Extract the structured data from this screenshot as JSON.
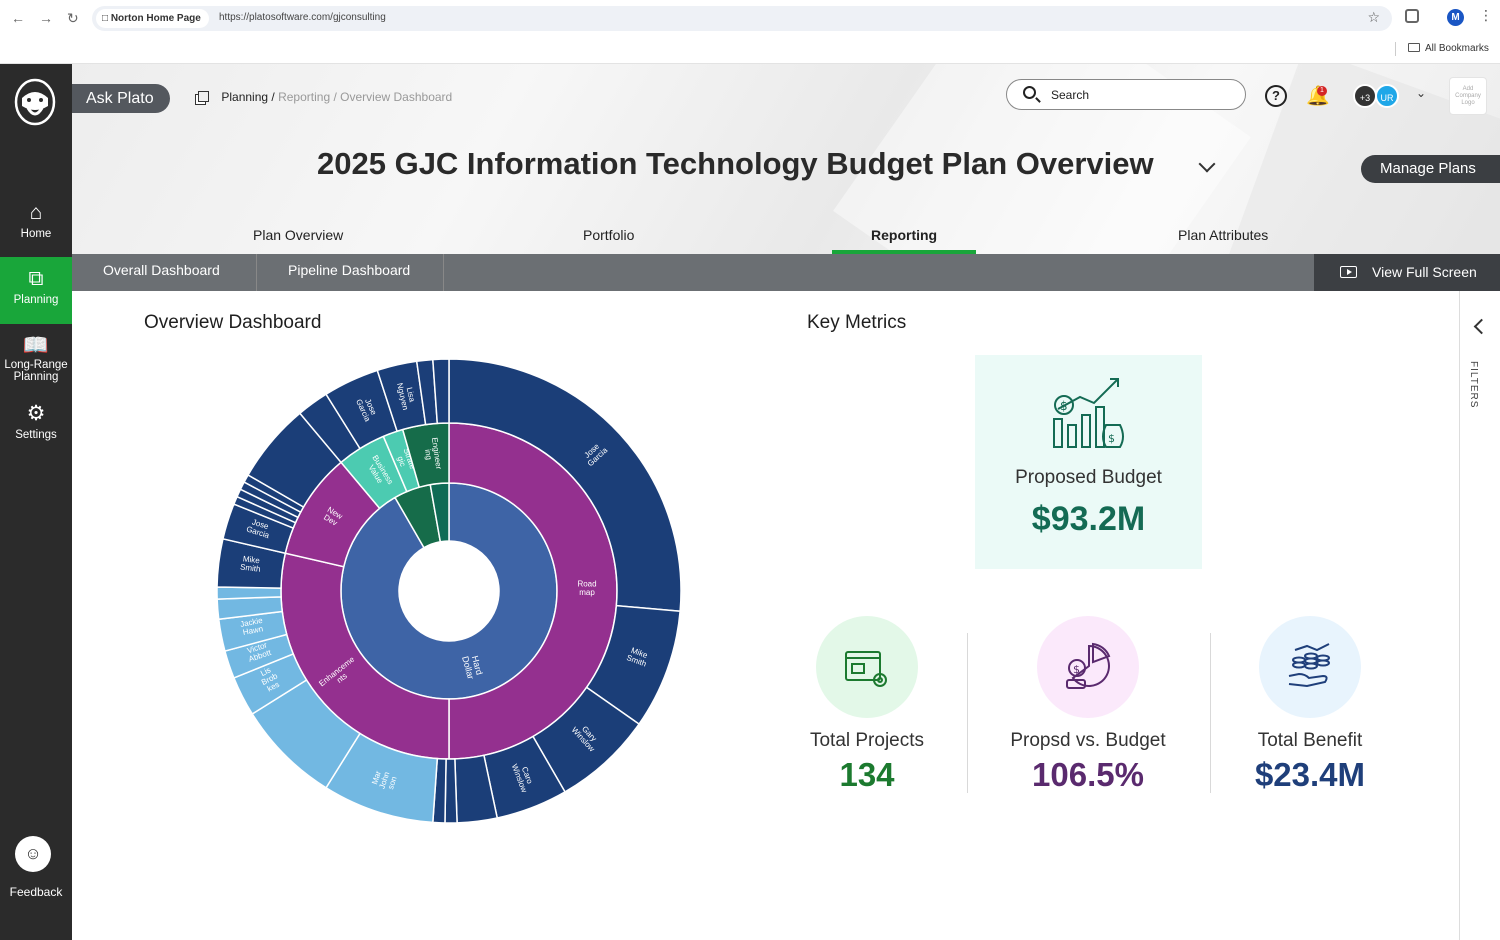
{
  "browser": {
    "tab_title": "Norton Home Page",
    "url": "https://platosoftware.com/gjconsulting",
    "bookmarks_label": "All Bookmarks",
    "profile_initial": "M"
  },
  "sidebar": {
    "items": [
      {
        "label": "Home",
        "icon": "home-icon"
      },
      {
        "label": "Planning",
        "icon": "planning-icon",
        "active": true
      },
      {
        "label": "Long-Range Planning",
        "icon": "map-icon"
      },
      {
        "label": "Settings",
        "icon": "gear-icon"
      }
    ],
    "feedback_label": "Feedback"
  },
  "header": {
    "ask_plato": "Ask Plato",
    "breadcrumb": {
      "root": "Planning",
      "sep1": "/",
      "mid": "Reporting",
      "sep2": "/",
      "leaf": "Overview Dashboard"
    },
    "search_placeholder": "Search",
    "notification_count": "1",
    "avatar_more": "+3",
    "avatar_user": "UR",
    "company_logo_text": "Add Company Logo",
    "plan_title": "2025 GJC Information Technology Budget Plan Overview",
    "manage_plans": "Manage Plans"
  },
  "tabs": [
    {
      "label": "Plan Overview"
    },
    {
      "label": "Portfolio"
    },
    {
      "label": "Reporting",
      "active": true
    },
    {
      "label": "Plan Attributes"
    }
  ],
  "subtabs": [
    {
      "label": "Overall Dashboard"
    },
    {
      "label": "Pipeline Dashboard"
    }
  ],
  "view_full_screen": "View Full Screen",
  "dashboard_title": "Overview Dashboard",
  "key_metrics_title": "Key Metrics",
  "proposed_budget": {
    "label": "Proposed Budget",
    "value": "$93.2M"
  },
  "metrics": [
    {
      "label": "Total Projects",
      "value": "134",
      "color": "#1c7a2f",
      "bg": "#e3f8e8",
      "icon": "project-folder-icon"
    },
    {
      "label": "Propsd vs. Budget",
      "value": "106.5%",
      "color": "#5a2a6e",
      "bg": "#fbe9fb",
      "icon": "budget-pie-icon"
    },
    {
      "label": "Total Benefit",
      "value": "$23.4M",
      "color": "#1f3f7a",
      "bg": "#e8f4fd",
      "icon": "benefit-hand-icon"
    }
  ],
  "filters_label": "FILTERS",
  "colors": {
    "sidebar_bg": "#2b2b2b",
    "active_green": "#19a63a",
    "navy": "#1b3e78",
    "inner_blue": "#3e64a6",
    "magenta": "#94308f",
    "teal_light": "#4ccbb1",
    "teal_dark": "#0f6b55",
    "light_blue": "#72b8e2"
  },
  "chart_data": {
    "type": "sunburst",
    "rings": [
      {
        "segments": [
          {
            "label": "Hard Dollar",
            "start": 0,
            "end": 330,
            "color": "#3e64a6"
          },
          {
            "label": "",
            "start": 330,
            "end": 350,
            "color": "#166c4a"
          },
          {
            "label": "",
            "start": 350,
            "end": 360,
            "color": "#0f6b55"
          }
        ]
      },
      {
        "segments": [
          {
            "label": "Road map",
            "start": 0,
            "end": 180,
            "color": "#94308f"
          },
          {
            "label": "Enhanceme nts",
            "start": 180,
            "end": 283,
            "color": "#94308f"
          },
          {
            "label": "New Dev",
            "start": 283,
            "end": 320,
            "color": "#94308f"
          },
          {
            "label": "Business Value",
            "start": 320,
            "end": 337,
            "color": "#4ccbb1"
          },
          {
            "label": "Strate gic",
            "start": 337,
            "end": 344,
            "color": "#4ccbb1"
          },
          {
            "label": "Engineer ing",
            "start": 344,
            "end": 360,
            "color": "#166c4a"
          }
        ]
      },
      {
        "segments": [
          {
            "label": "Jose Garcia",
            "start": 0,
            "end": 95,
            "color": "#1b3e78"
          },
          {
            "label": "Mike Smith",
            "start": 95,
            "end": 125,
            "color": "#1b3e78"
          },
          {
            "label": "Gary Winslow",
            "start": 125,
            "end": 150,
            "color": "#1b3e78"
          },
          {
            "label": "Caro Winslow",
            "start": 150,
            "end": 168,
            "color": "#1b3e78"
          },
          {
            "label": "",
            "start": 168,
            "end": 178,
            "color": "#1b3e78"
          },
          {
            "label": "",
            "start": 178,
            "end": 181,
            "color": "#1b3e78"
          },
          {
            "label": "",
            "start": 181,
            "end": 184,
            "color": "#1b3e78"
          },
          {
            "label": "Mar John son",
            "start": 184,
            "end": 212,
            "color": "#72b8e2"
          },
          {
            "label": "",
            "start": 212,
            "end": 238,
            "color": "#72b8e2"
          },
          {
            "label": "Lis Brob kes",
            "start": 238,
            "end": 248,
            "color": "#72b8e2"
          },
          {
            "label": "Victor Abbott",
            "start": 248,
            "end": 255,
            "color": "#72b8e2"
          },
          {
            "label": "Jackie Hawn",
            "start": 255,
            "end": 263,
            "color": "#72b8e2"
          },
          {
            "label": "",
            "start": 263,
            "end": 268,
            "color": "#72b8e2"
          },
          {
            "label": "",
            "start": 268,
            "end": 271,
            "color": "#72b8e2"
          },
          {
            "label": "Mike Smith",
            "start": 271,
            "end": 283,
            "color": "#1b3e78"
          },
          {
            "label": "Jose Garcia",
            "start": 283,
            "end": 292,
            "color": "#1b3e78"
          },
          {
            "label": "",
            "start": 292,
            "end": 294,
            "color": "#1b3e78"
          },
          {
            "label": "",
            "start": 294,
            "end": 296,
            "color": "#1b3e78"
          },
          {
            "label": "",
            "start": 296,
            "end": 298,
            "color": "#1b3e78"
          },
          {
            "label": "",
            "start": 298,
            "end": 300,
            "color": "#1b3e78"
          },
          {
            "label": "",
            "start": 300,
            "end": 320,
            "color": "#1b3e78"
          },
          {
            "label": "",
            "start": 320,
            "end": 328,
            "color": "#1b3e78"
          },
          {
            "label": "Jose Garcia",
            "start": 328,
            "end": 342,
            "color": "#1b3e78"
          },
          {
            "label": "Lisa Nguyen",
            "start": 342,
            "end": 352,
            "color": "#1b3e78"
          },
          {
            "label": "",
            "start": 352,
            "end": 356,
            "color": "#1b3e78"
          },
          {
            "label": "",
            "start": 356,
            "end": 360,
            "color": "#1b3e78"
          }
        ]
      }
    ]
  }
}
